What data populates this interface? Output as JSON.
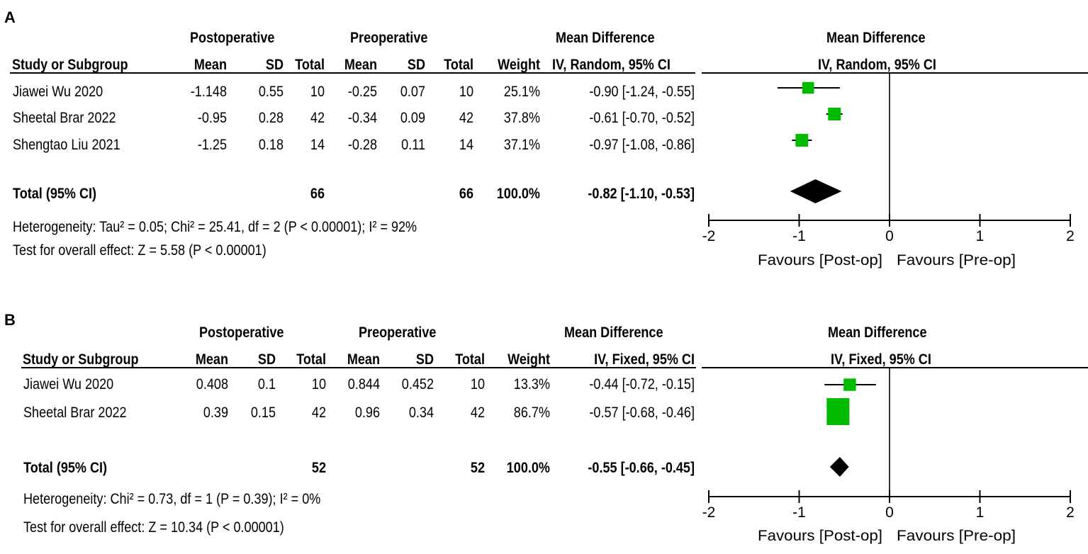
{
  "panels": [
    {
      "label": "A",
      "group1": "Postoperative",
      "group2": "Preoperative",
      "effect_header": "Mean Difference",
      "method": "IV, Random, 95% CI",
      "columns": {
        "study": "Study or Subgroup",
        "mean1": "Mean",
        "sd1": "SD",
        "total1": "Total",
        "mean2": "Mean",
        "sd2": "SD",
        "total2": "Total",
        "weight": "Weight"
      },
      "rows": [
        {
          "study": "Jiawei Wu 2020",
          "mean1": "-1.148",
          "sd1": "0.55",
          "total1": "10",
          "mean2": "-0.25",
          "sd2": "0.07",
          "total2": "10",
          "weight": "25.1%",
          "ci": "-0.90 [-1.24, -0.55]"
        },
        {
          "study": "Sheetal Brar 2022",
          "mean1": "-0.95",
          "sd1": "0.28",
          "total1": "42",
          "mean2": "-0.34",
          "sd2": "0.09",
          "total2": "42",
          "weight": "37.8%",
          "ci": "-0.61 [-0.70, -0.52]"
        },
        {
          "study": "Shengtao Liu 2021",
          "mean1": "-1.25",
          "sd1": "0.18",
          "total1": "14",
          "mean2": "-0.28",
          "sd2": "0.11",
          "total2": "14",
          "weight": "37.1%",
          "ci": "-0.97 [-1.08, -0.86]"
        }
      ],
      "total": {
        "label": "Total (95% CI)",
        "total1": "66",
        "total2": "66",
        "weight": "100.0%",
        "ci": "-0.82 [-1.10, -0.53]"
      },
      "heterogeneity": "Heterogeneity: Tau² = 0.05; Chi² = 25.41, df = 2 (P < 0.00001); I² = 92%",
      "overall": "Test for overall effect: Z = 5.58 (P < 0.00001)",
      "axis_ticks": [
        "-2",
        "-1",
        "0",
        "1",
        "2"
      ],
      "favours_left": "Favours [Post-op]",
      "favours_right": "Favours [Pre-op]"
    },
    {
      "label": "B",
      "group1": "Postoperative",
      "group2": "Preoperative",
      "effect_header": "Mean Difference",
      "method": "IV, Fixed, 95% CI",
      "columns": {
        "study": "Study or Subgroup",
        "mean1": "Mean",
        "sd1": "SD",
        "total1": "Total",
        "mean2": "Mean",
        "sd2": "SD",
        "total2": "Total",
        "weight": "Weight"
      },
      "rows": [
        {
          "study": "Jiawei Wu 2020",
          "mean1": "0.408",
          "sd1": "0.1",
          "total1": "10",
          "mean2": "0.844",
          "sd2": "0.452",
          "total2": "10",
          "weight": "13.3%",
          "ci": "-0.44 [-0.72, -0.15]"
        },
        {
          "study": "Sheetal Brar 2022",
          "mean1": "0.39",
          "sd1": "0.15",
          "total1": "42",
          "mean2": "0.96",
          "sd2": "0.34",
          "total2": "42",
          "weight": "86.7%",
          "ci": "-0.57 [-0.68, -0.46]"
        }
      ],
      "total": {
        "label": "Total (95% CI)",
        "total1": "52",
        "total2": "52",
        "weight": "100.0%",
        "ci": "-0.55 [-0.66, -0.45]"
      },
      "heterogeneity": "Heterogeneity: Chi² = 0.73, df = 1 (P = 0.39); I² = 0%",
      "overall": "Test for overall effect: Z = 10.34 (P < 0.00001)",
      "axis_ticks": [
        "-2",
        "-1",
        "0",
        "1",
        "2"
      ],
      "favours_left": "Favours [Post-op]",
      "favours_right": "Favours [Pre-op]"
    }
  ],
  "chart_data": [
    {
      "type": "forest",
      "title": "A",
      "xlim": [
        -2,
        2
      ],
      "xticks": [
        -2,
        -1,
        0,
        1,
        2
      ],
      "studies": [
        {
          "name": "Jiawei Wu 2020",
          "md": -0.9,
          "lower": -1.24,
          "upper": -0.55,
          "weight": 25.1
        },
        {
          "name": "Sheetal Brar 2022",
          "md": -0.61,
          "lower": -0.7,
          "upper": -0.52,
          "weight": 37.8
        },
        {
          "name": "Shengtao Liu 2021",
          "md": -0.97,
          "lower": -1.08,
          "upper": -0.86,
          "weight": 37.1
        }
      ],
      "pooled": {
        "md": -0.82,
        "lower": -1.1,
        "upper": -0.53
      },
      "marker_color": "#00bb00",
      "pooled_color": "#000000"
    },
    {
      "type": "forest",
      "title": "B",
      "xlim": [
        -2,
        2
      ],
      "xticks": [
        -2,
        -1,
        0,
        1,
        2
      ],
      "studies": [
        {
          "name": "Jiawei Wu 2020",
          "md": -0.44,
          "lower": -0.72,
          "upper": -0.15,
          "weight": 13.3
        },
        {
          "name": "Sheetal Brar 2022",
          "md": -0.57,
          "lower": -0.68,
          "upper": -0.46,
          "weight": 86.7
        }
      ],
      "pooled": {
        "md": -0.55,
        "lower": -0.66,
        "upper": -0.45
      },
      "marker_color": "#00bb00",
      "pooled_color": "#000000"
    }
  ]
}
